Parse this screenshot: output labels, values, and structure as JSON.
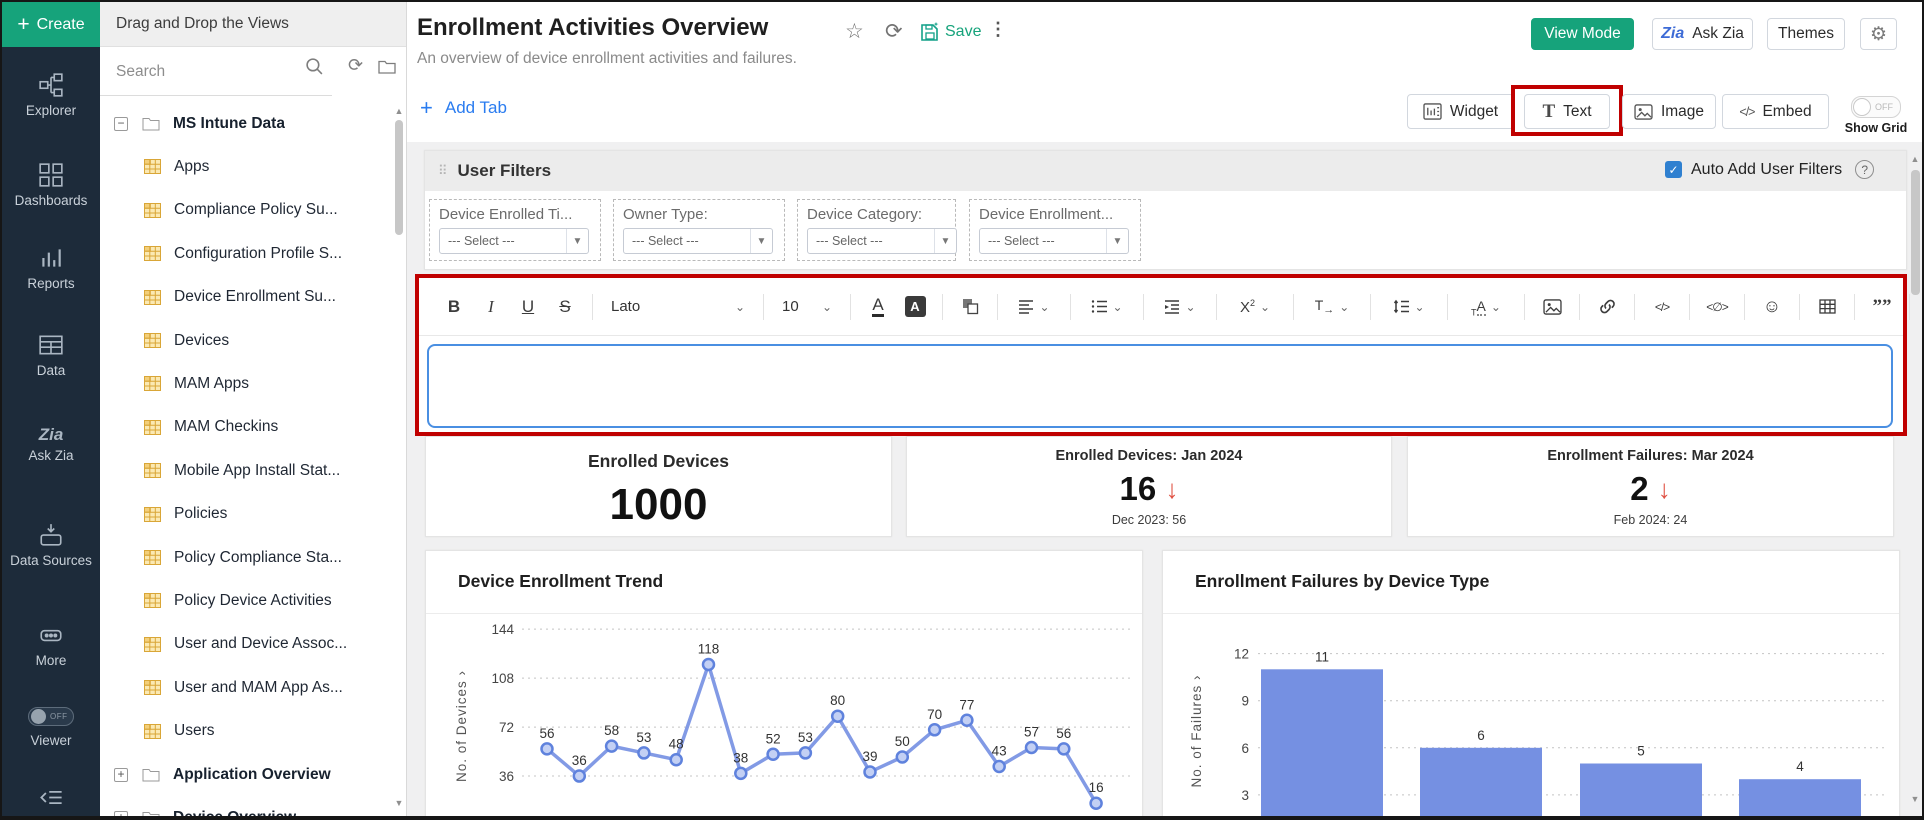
{
  "colors": {
    "accent": "#16a37b",
    "highlight_red": "#c00000",
    "link_blue": "#2a7cf0",
    "sidebar_bg": "#1d2b3a",
    "checkbox_blue": "#2f80d0",
    "editor_focus_border": "#4a8fe2",
    "kpi_trend_down": "#e05345"
  },
  "sidebar": {
    "create_label": "Create",
    "items": [
      {
        "id": "explorer",
        "label": "Explorer"
      },
      {
        "id": "dashboards",
        "label": "Dashboards"
      },
      {
        "id": "reports",
        "label": "Reports"
      },
      {
        "id": "data",
        "label": "Data"
      },
      {
        "id": "ask-zia",
        "label": "Ask Zia"
      },
      {
        "id": "data-sources",
        "label": "Data Sources"
      },
      {
        "id": "more",
        "label": "More"
      }
    ],
    "viewer": {
      "label": "Viewer",
      "state": "OFF"
    }
  },
  "tree_panel": {
    "header": "Drag and Drop the Views",
    "search_placeholder": "Search",
    "root_folder": "MS Intune Data",
    "tables": [
      "Apps",
      "Compliance Policy Su...",
      "Configuration Profile S...",
      "Device Enrollment Su...",
      "Devices",
      "MAM Apps",
      "MAM Checkins",
      "Mobile App Install Stat...",
      "Policies",
      "Policy Compliance Sta...",
      "Policy Device Activities",
      "User and Device Assoc...",
      "User and MAM App As...",
      "Users"
    ],
    "folders": [
      "Application Overview",
      "Device Overview"
    ]
  },
  "header": {
    "title": "Enrollment Activities Overview",
    "subtitle": "An overview of device enrollment activities and failures.",
    "save_label": "Save",
    "view_mode_label": "View Mode",
    "ask_zia_label": "Ask Zia",
    "themes_label": "Themes"
  },
  "tabbar": {
    "add_tab_label": "Add Tab",
    "widget_label": "Widget",
    "text_label": "Text",
    "image_label": "Image",
    "embed_label": "Embed",
    "show_grid_label": "Show Grid",
    "show_grid_state": "OFF"
  },
  "filters": {
    "title": "User Filters",
    "auto_add_label": "Auto Add User Filters",
    "select_placeholder": "--- Select ---",
    "items": [
      {
        "label": "Device Enrolled Ti..."
      },
      {
        "label": "Owner Type:"
      },
      {
        "label": "Device Category:"
      },
      {
        "label": "Device Enrollment..."
      }
    ]
  },
  "editor": {
    "font_name": "Lato",
    "font_size": "10"
  },
  "kpis": [
    {
      "title": "Enrolled Devices",
      "value": "1000",
      "trend": "none",
      "footnote": ""
    },
    {
      "title": "Enrolled Devices: Jan 2024",
      "value": "16",
      "trend": "down",
      "footnote": "Dec 2023: 56"
    },
    {
      "title": "Enrollment Failures: Mar 2024",
      "value": "2",
      "trend": "down",
      "footnote": "Feb 2024: 24"
    }
  ],
  "chart_data": [
    {
      "type": "line",
      "title": "Device Enrollment Trend",
      "ylabel": "No. of Devices",
      "values": [
        56,
        36,
        58,
        53,
        48,
        118,
        38,
        52,
        53,
        80,
        39,
        50,
        70,
        77,
        43,
        57,
        56,
        16
      ],
      "yticks": [
        36,
        72,
        108,
        144
      ],
      "ylim": [
        0,
        162
      ],
      "grid": "dotted-horizontal",
      "legend": "none",
      "line_color": "#7b95e4",
      "marker_fill": "#c3d0f4",
      "marker_stroke": "#5f82dd"
    },
    {
      "type": "bar",
      "title": "Enrollment Failures by Device Type",
      "ylabel": "No. of Failures",
      "values": [
        11,
        6,
        5,
        4
      ],
      "yticks": [
        3,
        6,
        9,
        12
      ],
      "ylim": [
        0,
        13
      ],
      "grid": "dotted-horizontal",
      "legend": "none",
      "bar_color": "#7590e2"
    }
  ]
}
